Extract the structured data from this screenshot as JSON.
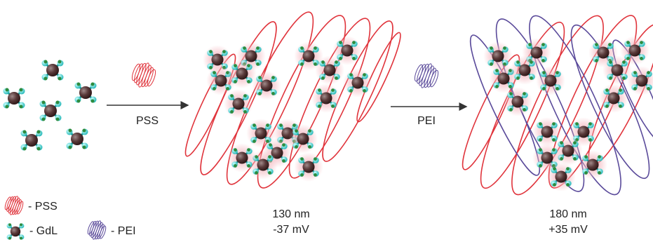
{
  "steps": [
    {
      "label": "PSS"
    },
    {
      "label": "PEI"
    }
  ],
  "particles": [
    {
      "size": "130 nm",
      "charge": "-37 mV"
    },
    {
      "size": "180 nm",
      "charge": "+35 mV"
    }
  ],
  "legend": [
    {
      "label": "- PSS"
    },
    {
      "label": "- GdL"
    },
    {
      "label": "- PEI"
    }
  ]
}
